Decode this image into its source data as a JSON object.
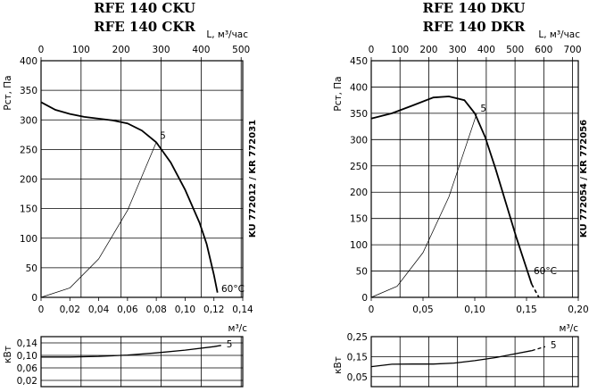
{
  "charts": [
    {
      "title_lines": [
        "RFE 140 CKU",
        "RFE 140 CKR"
      ],
      "model_codes": "KU 772012 / KR 772031",
      "top_axis_label": "L, м³/час",
      "top_ticks": [
        "0",
        "100",
        "200",
        "300",
        "400",
        "500"
      ],
      "y_label": "Pст, Па",
      "y_ticks": [
        "0",
        "50",
        "100",
        "150",
        "200",
        "250",
        "300",
        "350",
        "400"
      ],
      "x_ticks": [
        "0",
        "0,02",
        "0,04",
        "0,06",
        "0,08",
        "0,10",
        "0,12",
        "0,14"
      ],
      "x_unit": "м³/с",
      "curve_label": "5",
      "temp_label": "60°C",
      "power_label": "кВт",
      "power_ticks": [
        "0,14",
        "0,10",
        "0,06",
        "0,02"
      ],
      "power_curve_label": "5"
    },
    {
      "title_lines": [
        "RFE 140 DKU",
        "RFE 140 DKR"
      ],
      "model_codes": "KU 772054 / KR 772056",
      "top_axis_label": "L, м³/час",
      "top_ticks": [
        "0",
        "100",
        "200",
        "300",
        "400",
        "500",
        "600",
        "700"
      ],
      "y_label": "Pст, Па",
      "y_ticks": [
        "0",
        "50",
        "100",
        "150",
        "200",
        "250",
        "300",
        "350",
        "400",
        "450"
      ],
      "x_ticks": [
        "0",
        "0,05",
        "0,10",
        "0,15",
        "0,20"
      ],
      "x_unit": "м³/с",
      "curve_label": "5",
      "temp_label": "60°C",
      "power_label": "кВт",
      "power_ticks": [
        "0,25",
        "0,15",
        "0,05"
      ],
      "power_curve_label": "5"
    }
  ],
  "chart_data": [
    {
      "type": "line",
      "title": "RFE 140 CKU / RFE 140 CKR",
      "xlabel": "м³/с",
      "ylabel": "Pст, Па",
      "xlim": [
        0,
        0.14
      ],
      "ylim": [
        0,
        400
      ],
      "grid": true,
      "series": [
        {
          "name": "5",
          "x": [
            0,
            0.01,
            0.02,
            0.03,
            0.04,
            0.05,
            0.06,
            0.07,
            0.08,
            0.09,
            0.1,
            0.11,
            0.115,
            0.12,
            0.1225
          ],
          "y": [
            330,
            317,
            310,
            305,
            302,
            299,
            294,
            282,
            262,
            228,
            182,
            126,
            90,
            38,
            8
          ]
        },
        {
          "name": "system_curve",
          "x": [
            0,
            0.02,
            0.04,
            0.06,
            0.08
          ],
          "y": [
            0,
            16,
            65,
            147,
            262
          ]
        }
      ],
      "power": {
        "ylabel": "кВт",
        "ylim": [
          0,
          0.16
        ],
        "x": [
          0,
          0.02,
          0.04,
          0.06,
          0.08,
          0.1,
          0.12,
          0.125
        ],
        "y": [
          0.095,
          0.095,
          0.097,
          0.101,
          0.108,
          0.117,
          0.128,
          0.132
        ]
      }
    },
    {
      "type": "line",
      "title": "RFE 140 DKU / RFE 140 DKR",
      "xlabel": "м³/с",
      "ylabel": "Pст, Па",
      "xlim": [
        0,
        0.2
      ],
      "ylim": [
        0,
        450
      ],
      "grid": true,
      "series": [
        {
          "name": "5",
          "x": [
            0,
            0.02,
            0.04,
            0.06,
            0.075,
            0.09,
            0.1,
            0.11,
            0.12,
            0.13,
            0.14,
            0.15,
            0.155
          ],
          "y": [
            340,
            350,
            365,
            380,
            382,
            375,
            350,
            305,
            245,
            180,
            115,
            55,
            25
          ]
        },
        {
          "name": "5_extrapolated",
          "x": [
            0.155,
            0.162
          ],
          "y": [
            25,
            0
          ]
        },
        {
          "name": "system_curve",
          "x": [
            0,
            0.025,
            0.05,
            0.075,
            0.102
          ],
          "y": [
            0,
            21,
            85,
            191,
            350
          ]
        }
      ],
      "power": {
        "ylabel": "кВт",
        "ylim": [
          0,
          0.25
        ],
        "x": [
          0,
          0.02,
          0.04,
          0.06,
          0.08,
          0.1,
          0.12,
          0.14,
          0.155
        ],
        "y": [
          0.1,
          0.112,
          0.113,
          0.113,
          0.118,
          0.13,
          0.145,
          0.165,
          0.18
        ],
        "extrapolated": {
          "x": [
            0.155,
            0.168
          ],
          "y": [
            0.18,
            0.2
          ]
        }
      }
    }
  ]
}
